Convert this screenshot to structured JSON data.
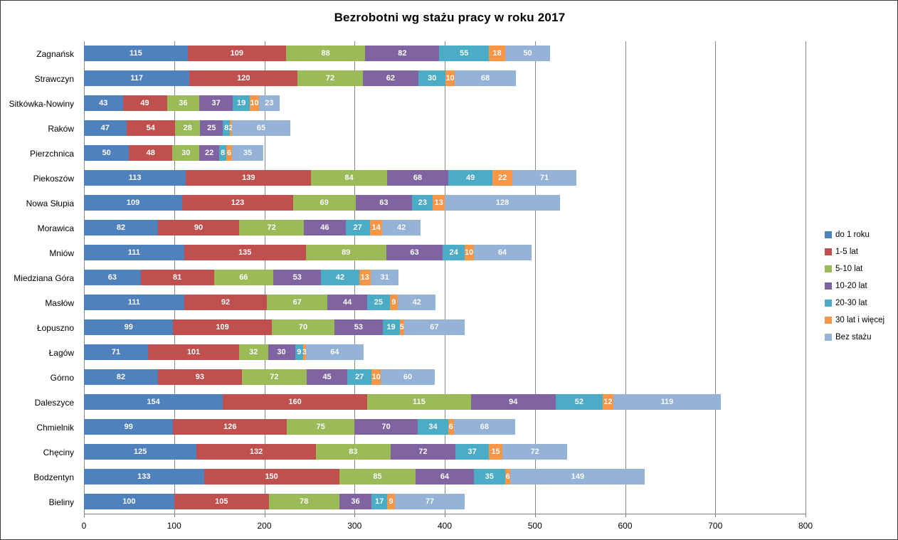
{
  "chart_data": {
    "type": "bar",
    "orientation": "horizontal-stacked",
    "title": "Bezrobotni wg stażu pracy w roku 2017",
    "xlabel": "",
    "ylabel": "",
    "xlim": [
      0,
      800
    ],
    "x_ticks": [
      0,
      100,
      200,
      300,
      400,
      500,
      600,
      700,
      800
    ],
    "grid": "vertical",
    "legend_position": "right",
    "data_labels": "inside-white-bold",
    "categories": [
      "Zagnańsk",
      "Strawczyn",
      "Sitkówka-Nowiny",
      "Raków",
      "Pierzchnica",
      "Piekoszów",
      "Nowa Słupia",
      "Morawica",
      "Mniów",
      "Miedziana Góra",
      "Masłów",
      "Łopuszno",
      "Łagów",
      "Górno",
      "Daleszyce",
      "Chmielnik",
      "Chęciny",
      "Bodzentyn",
      "Bieliny"
    ],
    "series": [
      {
        "name": "do 1 roku",
        "color": "#4F81BD",
        "values": [
          115,
          117,
          43,
          47,
          50,
          113,
          109,
          82,
          111,
          63,
          111,
          99,
          71,
          82,
          154,
          99,
          125,
          133,
          100
        ]
      },
      {
        "name": "1-5 lat",
        "color": "#C0504D",
        "values": [
          109,
          120,
          49,
          54,
          48,
          139,
          123,
          90,
          135,
          81,
          92,
          109,
          101,
          93,
          160,
          126,
          132,
          150,
          105
        ]
      },
      {
        "name": "5-10 lat",
        "color": "#9BBB59",
        "values": [
          88,
          72,
          36,
          28,
          30,
          84,
          69,
          72,
          89,
          66,
          67,
          70,
          32,
          72,
          115,
          75,
          83,
          85,
          78
        ]
      },
      {
        "name": "10-20 lat",
        "color": "#8064A2",
        "values": [
          82,
          62,
          37,
          25,
          22,
          68,
          63,
          46,
          63,
          53,
          44,
          53,
          30,
          45,
          94,
          70,
          72,
          64,
          36
        ]
      },
      {
        "name": "20-30 lat",
        "color": "#4BACC6",
        "values": [
          55,
          30,
          19,
          8,
          8,
          49,
          23,
          27,
          24,
          42,
          25,
          19,
          9,
          27,
          52,
          34,
          37,
          35,
          17
        ]
      },
      {
        "name": "30 lat i więcej",
        "color": "#F79646",
        "values": [
          18,
          10,
          10,
          2,
          6,
          22,
          13,
          14,
          10,
          13,
          9,
          5,
          3,
          10,
          12,
          6,
          15,
          6,
          9
        ]
      },
      {
        "name": "Bez stażu",
        "color": "#95B3D7",
        "values": [
          50,
          68,
          23,
          65,
          35,
          71,
          128,
          42,
          64,
          31,
          42,
          67,
          64,
          60,
          119,
          68,
          72,
          149,
          77
        ]
      }
    ],
    "colors": {
      "gridline": "#898989",
      "axis_line": "#808080",
      "label_text": "#ffffff",
      "tick_text": "#000000"
    }
  }
}
